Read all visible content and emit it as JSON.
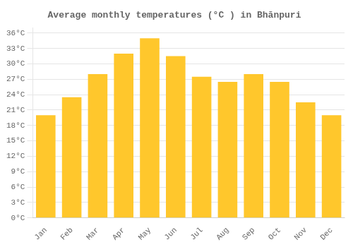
{
  "chart_data": {
    "type": "bar",
    "title": "Average monthly temperatures (°C ) in Bhānpuri",
    "categories": [
      "Jan",
      "Feb",
      "Mar",
      "Apr",
      "May",
      "Jun",
      "Jul",
      "Aug",
      "Sep",
      "Oct",
      "Nov",
      "Dec"
    ],
    "values": [
      20.0,
      23.5,
      28.0,
      32.0,
      35.0,
      31.5,
      27.5,
      26.5,
      28.0,
      26.5,
      22.5,
      20.0
    ],
    "color": "#FFC72C",
    "ylim": [
      0,
      37
    ],
    "yticks": [
      {
        "value": 0,
        "label": "0°C"
      },
      {
        "value": 3,
        "label": "3°C"
      },
      {
        "value": 6,
        "label": "6°C"
      },
      {
        "value": 9,
        "label": "9°C"
      },
      {
        "value": 12,
        "label": "12°C"
      },
      {
        "value": 15,
        "label": "15°C"
      },
      {
        "value": 18,
        "label": "18°C"
      },
      {
        "value": 21,
        "label": "21°C"
      },
      {
        "value": 24,
        "label": "24°C"
      },
      {
        "value": 27,
        "label": "27°C"
      },
      {
        "value": 30,
        "label": "30°C"
      },
      {
        "value": 33,
        "label": "33°C"
      },
      {
        "value": 36,
        "label": "36°C"
      }
    ],
    "grid": true
  }
}
